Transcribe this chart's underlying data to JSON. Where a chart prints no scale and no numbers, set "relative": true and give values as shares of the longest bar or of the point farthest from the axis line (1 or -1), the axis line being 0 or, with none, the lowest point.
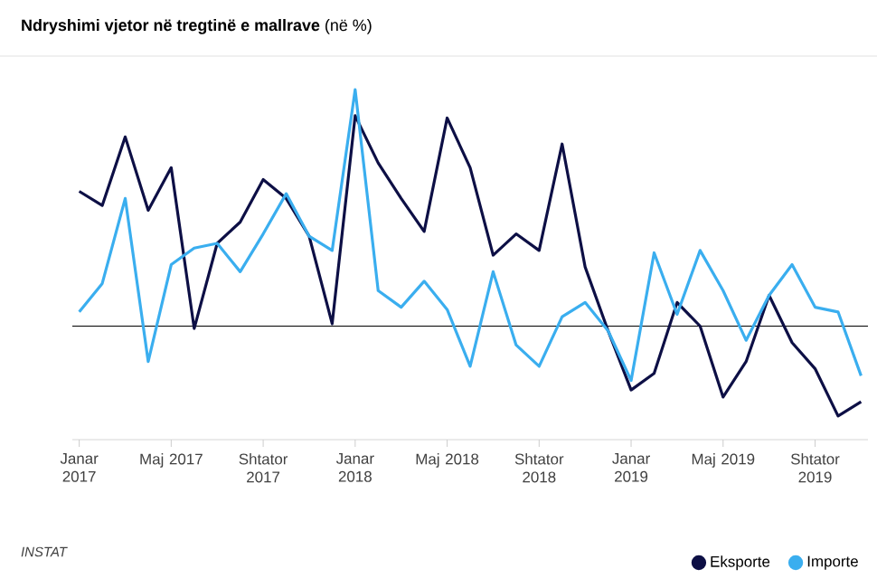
{
  "chart_data": {
    "type": "line",
    "title": "**Ndryshimi vjetor në tregtinë e mallrave** (në %)",
    "relative": true,
    "categories": [
      "Janar 2017",
      null,
      null,
      null,
      "Maj 2017",
      null,
      null,
      null,
      "Shtator 2017",
      null,
      null,
      null,
      "Janar 2018",
      null,
      null,
      null,
      "Maj 2018",
      null,
      null,
      null,
      "Shtator 2018",
      null,
      null,
      null,
      "Janar 2019",
      null,
      null,
      null,
      "Maj 2019",
      null,
      null,
      null,
      "Shtator 2019",
      null,
      null
    ],
    "series": [
      {
        "name": "Eksporte",
        "color": "#0d0f45",
        "values": [
          0.57,
          0.51,
          0.8,
          0.49,
          0.67,
          -0.01,
          0.35,
          0.44,
          0.62,
          0.54,
          0.38,
          0.01,
          0.89,
          0.69,
          0.54,
          0.4,
          0.88,
          0.67,
          0.3,
          0.39,
          0.32,
          0.77,
          0.25,
          -0.02,
          -0.27,
          -0.2,
          0.1,
          0,
          -0.3,
          -0.15,
          0.13,
          -0.07,
          -0.18,
          -0.38,
          -0.32
        ]
      },
      {
        "name": "Importe",
        "color": "#3aaeef",
        "values": [
          0.06,
          0.18,
          0.54,
          -0.15,
          0.26,
          0.33,
          0.35,
          0.23,
          0.39,
          0.56,
          0.38,
          0.32,
          1,
          0.15,
          0.08,
          0.19,
          0.07,
          -0.17,
          0.23,
          -0.08,
          -0.17,
          0.04,
          0.1,
          -0.02,
          -0.23,
          0.31,
          0.05,
          0.32,
          0.15,
          -0.06,
          0.13,
          0.26,
          0.08,
          0.06,
          -0.21
        ]
      }
    ],
    "legend": "bottom right",
    "marker": "none",
    "line_style": "solid",
    "annotations": [
      "INSTAT"
    ]
  }
}
